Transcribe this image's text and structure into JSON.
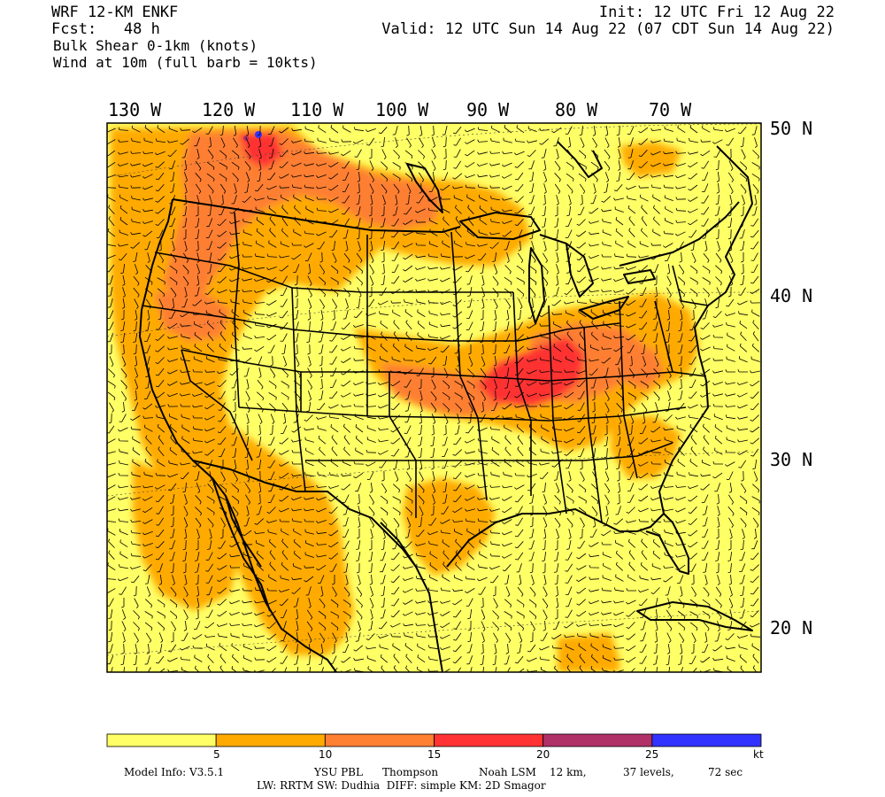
{
  "header": {
    "model": "WRF 12-KM ENKF",
    "fcst": "Fcst:   48 h",
    "field": "Bulk Shear 0-1km (knots)",
    "wind": "Wind at 10m (full barb = 10kts)",
    "init": "Init: 12 UTC Fri 12 Aug 22",
    "valid": "Valid: 12 UTC Sun 14 Aug 22 (07 CDT Sun 14 Aug 22)"
  },
  "longitude_labels": [
    "130 W",
    "120 W",
    "110 W",
    "100 W",
    "90 W",
    "80 W",
    "70 W"
  ],
  "latitude_labels": [
    "50 N",
    "40 N",
    "30 N",
    "20 N"
  ],
  "colorbar": {
    "colors": [
      "#ffff66",
      "#ffaa00",
      "#ff7f33",
      "#ff3333",
      "#b03068",
      "#3333ff"
    ],
    "ticks": [
      "5",
      "10",
      "15",
      "20",
      "25",
      "kt"
    ]
  },
  "footer": {
    "model_info": "Model Info: V3.5.1",
    "pbl": "YSU PBL",
    "mp": "Thompson",
    "lsm": "Noah LSM",
    "res": "12 km,",
    "levels": "37 levels,",
    "dt": "72 sec",
    "line2": "LW: RRTM SW: Dudhia  DIFF: simple KM: 2D Smagor"
  }
}
